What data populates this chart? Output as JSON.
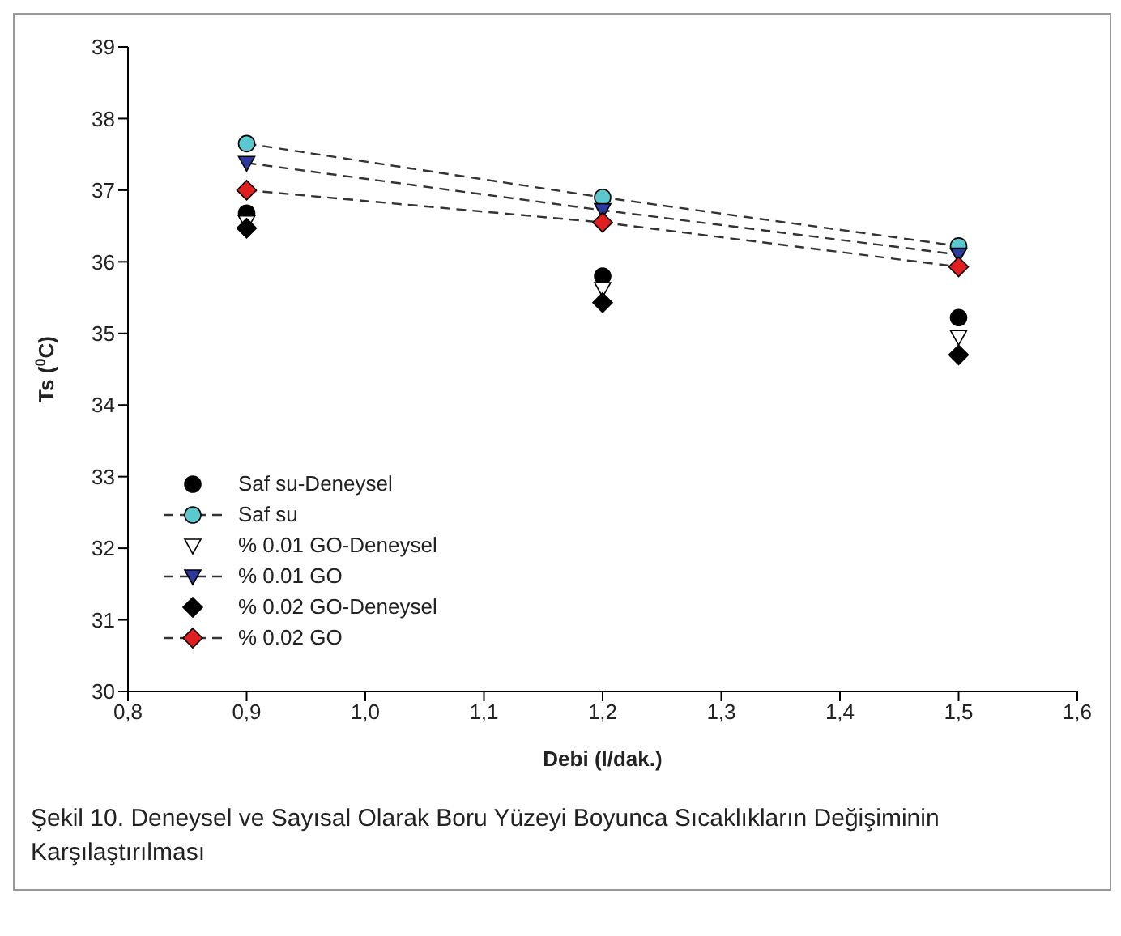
{
  "chart_data": {
    "type": "scatter",
    "xlabel": "Debi (l/dak.)",
    "ylabel": "Ts ($^{0}$C)",
    "annotations": [
      "Şekil 10. Deneysel ve Sayısal Olarak Boru Yüzeyi Boyunca Sıcaklıkların Değişiminin Karşılaştırılması"
    ],
    "xlim": [
      0.8,
      1.6
    ],
    "xticks": [
      {
        "value": 0.8,
        "label": "0,8"
      },
      {
        "value": 0.9,
        "label": "0,9"
      },
      {
        "value": 1.0,
        "label": "1,0"
      },
      {
        "value": 1.1,
        "label": "1,1"
      },
      {
        "value": 1.2,
        "label": "1,2"
      },
      {
        "value": 1.3,
        "label": "1,3"
      },
      {
        "value": 1.4,
        "label": "1,4"
      },
      {
        "value": 1.5,
        "label": "1,5"
      },
      {
        "value": 1.6,
        "label": "1,6"
      }
    ],
    "ylim": [
      30,
      39
    ],
    "yticks": [
      30,
      31,
      32,
      33,
      34,
      35,
      36,
      37,
      38,
      39
    ],
    "x": [
      0.9,
      1.2,
      1.5
    ],
    "grid": false,
    "legend": "bottom left",
    "series": [
      {
        "name": "Saf su-Deneysel",
        "marker": "circle",
        "color": "#000000",
        "values": [
          36.68,
          35.8,
          35.22
        ]
      },
      {
        "name": "Saf su",
        "type": "line",
        "marker": "circle",
        "line_style": "dashed",
        "color": "#5bc8d0",
        "values": [
          37.65,
          36.9,
          36.22
        ]
      },
      {
        "name": "% 0.01 GO-Deneysel",
        "marker": "triangle",
        "color": "#ffffff",
        "values": [
          36.55,
          35.62,
          34.95
        ]
      },
      {
        "name": "% 0.01 GO",
        "type": "line",
        "marker": "triangle",
        "line_style": "dashed",
        "color": "#2b3a9c",
        "values": [
          37.38,
          36.72,
          36.1
        ]
      },
      {
        "name": "% 0.02 GO-Deneysel",
        "marker": "diamond",
        "color": "#000000",
        "values": [
          36.47,
          35.43,
          34.7
        ]
      },
      {
        "name": "% 0.02 GO",
        "type": "line",
        "marker": "diamond",
        "line_style": "dashed",
        "color": "#e02020",
        "values": [
          37.0,
          36.55,
          35.93
        ]
      }
    ]
  }
}
